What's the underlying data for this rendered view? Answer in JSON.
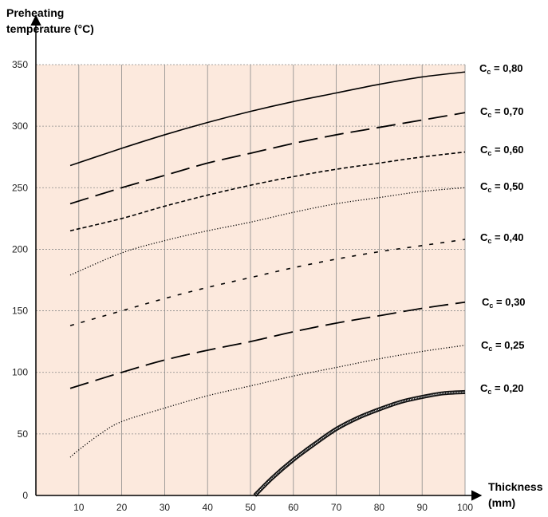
{
  "chart_data": {
    "type": "line",
    "title": "",
    "ylabel_line1": "Preheating",
    "ylabel_line2": "temperature (°C)",
    "xlabel_line1": "Thickness",
    "xlabel_line2": "(mm)",
    "xlim": [
      0,
      100
    ],
    "ylim": [
      0,
      350
    ],
    "xticks": [
      10,
      20,
      30,
      40,
      50,
      60,
      70,
      80,
      90,
      100
    ],
    "yticks": [
      0,
      50,
      100,
      150,
      200,
      250,
      300,
      350
    ],
    "grid": true,
    "background": "#fce9dd",
    "legend": "right",
    "series": [
      {
        "name": "0,80",
        "style": "solid",
        "x": [
          8,
          20,
          30,
          40,
          50,
          60,
          70,
          80,
          90,
          100
        ],
        "values": [
          268,
          282,
          293,
          303,
          312,
          320,
          327,
          334,
          340,
          344
        ]
      },
      {
        "name": "0,70",
        "style": "longdash",
        "x": [
          8,
          20,
          30,
          40,
          50,
          60,
          70,
          80,
          90,
          100
        ],
        "values": [
          237,
          250,
          260,
          270,
          278,
          286,
          293,
          299,
          305,
          311
        ]
      },
      {
        "name": "0,60",
        "style": "shortdash",
        "x": [
          8,
          20,
          30,
          40,
          50,
          60,
          70,
          80,
          90,
          100
        ],
        "values": [
          215,
          225,
          235,
          244,
          252,
          259,
          265,
          270,
          275,
          279
        ]
      },
      {
        "name": "0,50",
        "style": "dotted",
        "x": [
          8,
          20,
          30,
          40,
          50,
          60,
          70,
          80,
          90,
          100
        ],
        "values": [
          179,
          197,
          207,
          215,
          222,
          230,
          237,
          242,
          247,
          250
        ]
      },
      {
        "name": "0,40",
        "style": "sparsedash",
        "x": [
          8,
          20,
          30,
          40,
          50,
          60,
          70,
          80,
          90,
          100
        ],
        "values": [
          138,
          150,
          160,
          169,
          177,
          185,
          192,
          198,
          203,
          208
        ]
      },
      {
        "name": "0,30",
        "style": "longdash",
        "x": [
          8,
          20,
          30,
          40,
          50,
          60,
          70,
          80,
          90,
          100
        ],
        "values": [
          87,
          100,
          110,
          118,
          125,
          133,
          140,
          146,
          152,
          157
        ]
      },
      {
        "name": "0,25",
        "style": "dotted",
        "x": [
          8,
          10,
          15,
          20,
          30,
          40,
          50,
          60,
          70,
          80,
          90,
          100
        ],
        "values": [
          31,
          37,
          50,
          60,
          71,
          81,
          89,
          97,
          104,
          111,
          117,
          122
        ]
      },
      {
        "name": "0,20",
        "style": "thick",
        "x": [
          51,
          55,
          60,
          65,
          70,
          75,
          80,
          85,
          90,
          95,
          100
        ],
        "values": [
          0,
          14,
          29,
          42,
          54,
          63,
          70,
          76,
          80,
          83,
          84
        ]
      }
    ],
    "legend_prefix": "C",
    "legend_subscript": "c"
  }
}
